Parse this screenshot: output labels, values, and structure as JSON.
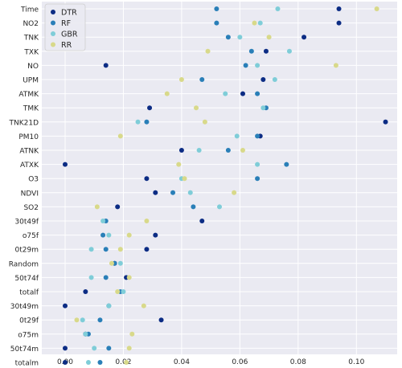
{
  "chart_data": {
    "type": "scatter",
    "orientation": "horizontal-dot",
    "title": "",
    "xlabel": "",
    "ylabel": "",
    "xlim": [
      -0.008,
      0.114
    ],
    "xticks": [
      0.0,
      0.02,
      0.04,
      0.06,
      0.08,
      0.1
    ],
    "xtick_labels": [
      "0.00",
      "0.02",
      "0.04",
      "0.06",
      "0.08",
      "0.10"
    ],
    "grid": true,
    "legend_position": "top-left",
    "categories": [
      "Time",
      "NO2",
      "TNK",
      "TXK",
      "NO",
      "UPM",
      "ATMK",
      "TMK",
      "TNK21D",
      "PM10",
      "ATNK",
      "ATXK",
      "O3",
      "NDVI",
      "SO2",
      "30t49f",
      "o75f",
      "0t29m",
      "Random",
      "50t74f",
      "totalf",
      "30t49m",
      "0t29f",
      "o75m",
      "50t74m",
      "totalm"
    ],
    "series": [
      {
        "name": "DTR",
        "color": "#0c2c84",
        "values": [
          0.094,
          0.094,
          0.082,
          0.069,
          0.014,
          0.068,
          0.061,
          0.029,
          0.11,
          0.067,
          0.04,
          0.0,
          0.028,
          0.031,
          0.018,
          0.047,
          0.031,
          0.028,
          0.017,
          0.021,
          0.007,
          0.0,
          0.033,
          0.007,
          0.0,
          0.0
        ]
      },
      {
        "name": "RF",
        "color": "#2a7fb8",
        "values": [
          0.052,
          0.052,
          0.056,
          0.064,
          0.062,
          0.047,
          0.066,
          0.069,
          0.028,
          0.066,
          0.056,
          0.076,
          0.066,
          0.037,
          0.044,
          0.014,
          0.013,
          0.014,
          0.017,
          0.014,
          0.019,
          0.015,
          0.012,
          0.008,
          0.015,
          0.012
        ]
      },
      {
        "name": "GBR",
        "color": "#7fcdd8",
        "values": [
          0.073,
          0.067,
          0.06,
          0.077,
          0.066,
          0.072,
          0.055,
          0.068,
          0.025,
          0.059,
          0.046,
          0.066,
          0.04,
          0.043,
          0.053,
          0.013,
          0.015,
          0.009,
          0.019,
          0.009,
          0.02,
          0.015,
          0.006,
          0.007,
          0.01,
          0.008
        ]
      },
      {
        "name": "RR",
        "color": "#d8d98a",
        "values": [
          0.107,
          0.065,
          0.07,
          0.049,
          0.093,
          0.04,
          0.035,
          0.045,
          0.048,
          0.019,
          0.061,
          0.039,
          0.041,
          0.058,
          0.011,
          0.028,
          0.022,
          0.019,
          0.016,
          0.022,
          0.018,
          0.027,
          0.004,
          0.023,
          0.022,
          0.021
        ]
      }
    ]
  }
}
